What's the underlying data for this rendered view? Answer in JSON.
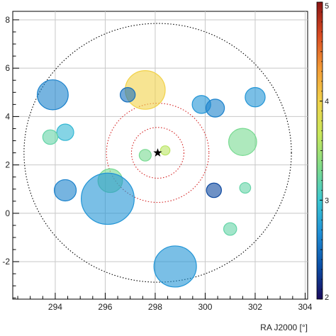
{
  "chart_data": {
    "type": "scatter",
    "title": "",
    "xlabel": "RA J2000 [°]",
    "ylabel": "",
    "xlim": [
      292.3,
      304.1
    ],
    "ylim": [
      -3.55,
      8.35
    ],
    "xticks": [
      294,
      296,
      298,
      300,
      302,
      304
    ],
    "yticks": [
      -2,
      0,
      2,
      4,
      6,
      8
    ],
    "grid": true,
    "colorbar": {
      "range": [
        2,
        5
      ],
      "ticks": [
        2,
        3,
        4,
        5
      ],
      "palette": [
        "#1a0a5e",
        "#0b4fa6",
        "#1f8fd6",
        "#3bc8d2",
        "#7fdc8a",
        "#c9e85a",
        "#f1d24a",
        "#f39a35",
        "#d84a22",
        "#8a1414"
      ]
    },
    "center": {
      "x": 298.1,
      "y": 2.5,
      "marker": "star"
    },
    "rings": [
      {
        "r": 5.35,
        "color": "#000000",
        "style": "dotted"
      },
      {
        "r": 2.05,
        "color": "#d42020",
        "style": "dotted"
      },
      {
        "r": 1.05,
        "color": "#d42020",
        "style": "dotted"
      }
    ],
    "points": [
      {
        "x": 293.9,
        "y": 4.9,
        "size": 0.62,
        "value": 2.6
      },
      {
        "x": 297.6,
        "y": 5.1,
        "size": 0.8,
        "value": 4.0
      },
      {
        "x": 296.9,
        "y": 4.9,
        "size": 0.3,
        "value": 2.5
      },
      {
        "x": 299.85,
        "y": 4.5,
        "size": 0.37,
        "value": 2.7
      },
      {
        "x": 300.4,
        "y": 4.35,
        "size": 0.37,
        "value": 2.6
      },
      {
        "x": 302.0,
        "y": 4.8,
        "size": 0.4,
        "value": 2.7
      },
      {
        "x": 294.4,
        "y": 3.35,
        "size": 0.34,
        "value": 2.9
      },
      {
        "x": 293.8,
        "y": 3.15,
        "size": 0.3,
        "value": 3.2
      },
      {
        "x": 301.5,
        "y": 2.95,
        "size": 0.56,
        "value": 3.3
      },
      {
        "x": 297.6,
        "y": 2.4,
        "size": 0.24,
        "value": 3.3
      },
      {
        "x": 298.4,
        "y": 2.6,
        "size": 0.19,
        "value": 3.6
      },
      {
        "x": 296.2,
        "y": 1.35,
        "size": 0.49,
        "value": 3.3
      },
      {
        "x": 294.4,
        "y": 0.95,
        "size": 0.44,
        "value": 2.6
      },
      {
        "x": 300.35,
        "y": 0.95,
        "size": 0.3,
        "value": 2.3
      },
      {
        "x": 301.6,
        "y": 1.05,
        "size": 0.22,
        "value": 3.2
      },
      {
        "x": 296.1,
        "y": 0.6,
        "size": 1.06,
        "value": 2.7
      },
      {
        "x": 301.0,
        "y": -0.65,
        "size": 0.26,
        "value": 3.2
      },
      {
        "x": 298.8,
        "y": -2.2,
        "size": 0.85,
        "value": 2.7
      }
    ]
  }
}
